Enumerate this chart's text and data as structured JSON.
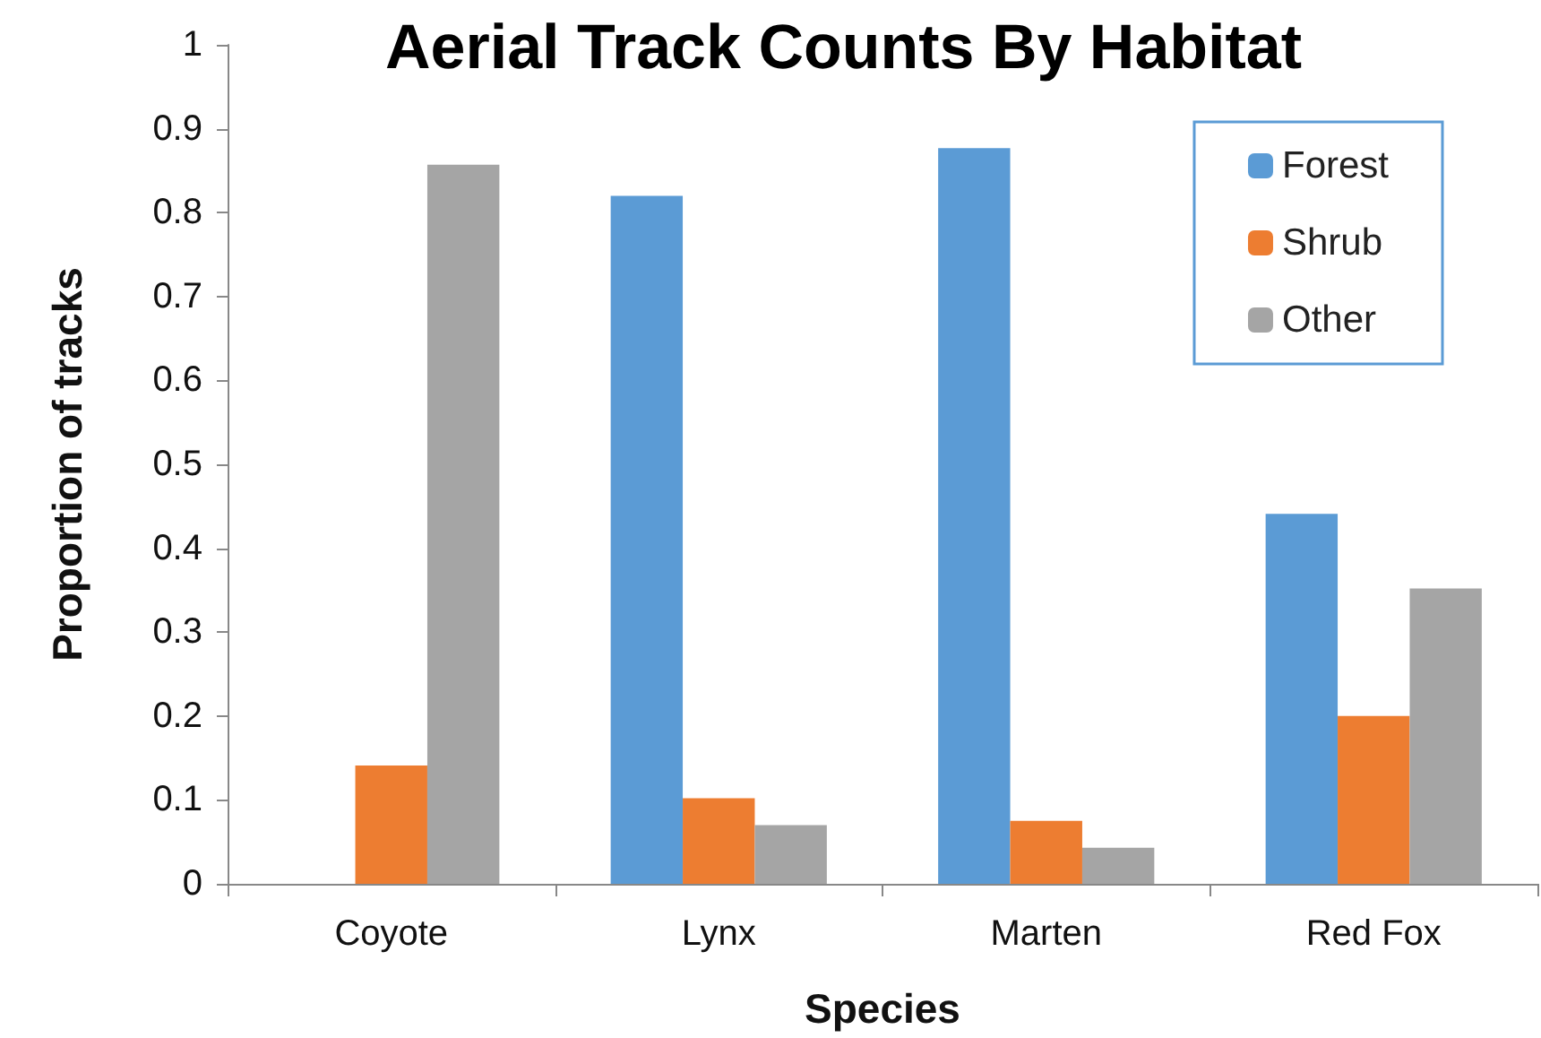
{
  "chart_data": {
    "type": "bar",
    "title": "Aerial Track Counts By Habitat",
    "xlabel": "Species",
    "ylabel": "Proportion of tracks",
    "categories": [
      "Coyote",
      "Lynx",
      "Marten",
      "Red Fox"
    ],
    "series": [
      {
        "name": "Forest",
        "color": "#5b9bd5",
        "values": [
          0,
          0.82,
          0.877,
          0.441
        ]
      },
      {
        "name": "Shrub",
        "color": "#ed7d31",
        "values": [
          0.141,
          0.102,
          0.075,
          0.2
        ]
      },
      {
        "name": "Other",
        "color": "#a5a5a5",
        "values": [
          0.857,
          0.07,
          0.043,
          0.352
        ]
      }
    ],
    "ylim": [
      0,
      1
    ],
    "yticks": [
      0,
      0.1,
      0.2,
      0.3,
      0.4,
      0.5,
      0.6,
      0.7,
      0.8,
      0.9,
      1
    ],
    "grid": false,
    "legend": "top right"
  }
}
